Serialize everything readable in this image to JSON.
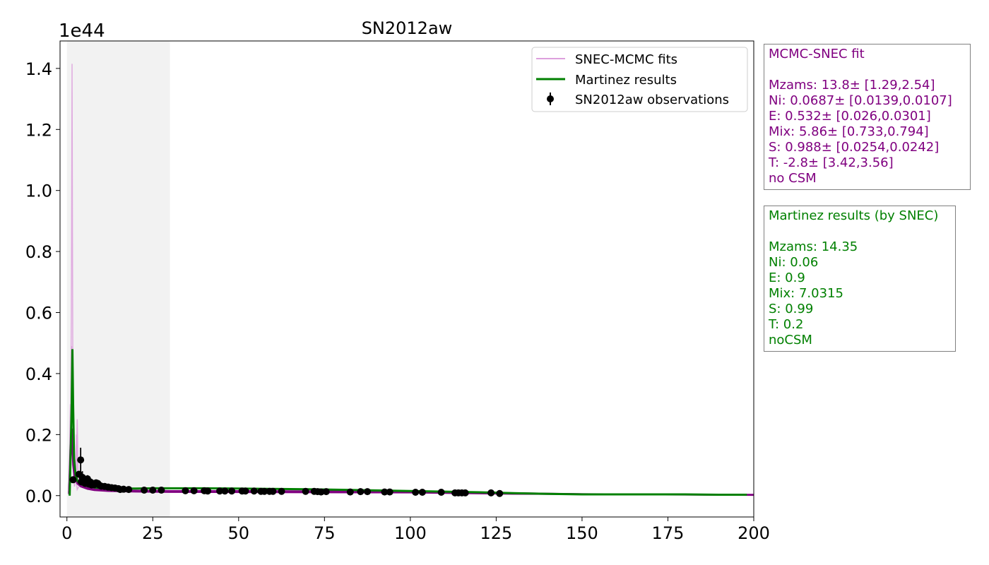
{
  "chart_data": {
    "type": "line",
    "title": "SN2012aw",
    "xlabel": "",
    "ylabel": "",
    "y_offset_label": "1e44",
    "xlim": [
      -2,
      200
    ],
    "ylim": [
      -0.07,
      1.49
    ],
    "x_ticks": [
      0,
      25,
      50,
      75,
      100,
      125,
      150,
      175,
      200
    ],
    "x_tick_labels": [
      "0",
      "25",
      "50",
      "75",
      "100",
      "125",
      "150",
      "175",
      "200"
    ],
    "y_ticks": [
      0.0,
      0.2,
      0.4,
      0.6,
      0.8,
      1.0,
      1.2,
      1.4
    ],
    "y_tick_labels": [
      "0.0",
      "0.2",
      "0.4",
      "0.6",
      "0.8",
      "1.0",
      "1.2",
      "1.4"
    ],
    "shaded_region": {
      "x": [
        0,
        30
      ],
      "color": "#f2f2f2"
    },
    "grid": false,
    "legend_position": "top-right",
    "legend": [
      {
        "label": "SNEC-MCMC fits",
        "style": "line",
        "color": "#dda0dd"
      },
      {
        "label": "Martinez results",
        "style": "line",
        "color": "#008000"
      },
      {
        "label": "SN2012aw observations",
        "style": "errorbar-marker",
        "color": "#000000"
      }
    ],
    "series": [
      {
        "name": "SNEC-MCMC fits",
        "color": "#dda0dd",
        "role": "fit-spikes",
        "lines": [
          {
            "x": [
              0.6,
              1.0,
              1.3,
              1.5,
              1.7,
              1.9,
              2.2,
              2.6,
              3.0,
              3.3,
              3.6,
              4.0
            ],
            "y": [
              0.005,
              0.12,
              0.6,
              1.415,
              0.5,
              0.15,
              0.08,
              0.05,
              0.25,
              0.06,
              0.04,
              0.03
            ]
          },
          {
            "x": [
              0.6,
              1.0,
              1.2,
              1.4,
              1.7,
              2.0,
              2.4,
              2.8,
              3.2,
              3.8
            ],
            "y": [
              0.005,
              0.3,
              0.1,
              0.49,
              0.2,
              0.08,
              0.04,
              0.2,
              0.05,
              0.035
            ]
          },
          {
            "x": [
              0.6,
              0.9,
              1.2,
              1.5,
              1.8,
              2.2,
              2.6,
              3.0,
              3.5
            ],
            "y": [
              0.005,
              0.2,
              0.26,
              0.15,
              0.1,
              0.03,
              0.06,
              0.02,
              0.03
            ]
          }
        ]
      },
      {
        "name": "SNEC-MCMC fits (purple)",
        "color": "#800080",
        "role": "fit-curves",
        "lines": [
          {
            "x": [
              0.6,
              1.0,
              1.4,
              1.8,
              2.2,
              2.7,
              3.2,
              4,
              6,
              8,
              10,
              15,
              20,
              30,
              50,
              80,
              100,
              130,
              150,
              200
            ],
            "y": [
              0.01,
              0.12,
              0.2,
              0.1,
              0.06,
              0.05,
              0.04,
              0.032,
              0.026,
              0.022,
              0.02,
              0.017,
              0.016,
              0.015,
              0.015,
              0.014,
              0.012,
              0.008,
              0.005,
              0.003
            ]
          },
          {
            "x": [
              0.6,
              1.0,
              1.5,
              2.0,
              2.5,
              3.0,
              4,
              6,
              8,
              12,
              20,
              30,
              60,
              100,
              130,
              200
            ],
            "y": [
              0.005,
              0.15,
              0.22,
              0.09,
              0.06,
              0.04,
              0.03,
              0.022,
              0.018,
              0.015,
              0.013,
              0.012,
              0.011,
              0.01,
              0.006,
              0.002
            ]
          }
        ]
      },
      {
        "name": "Martinez results",
        "color": "#008000",
        "role": "model",
        "x": [
          0.8,
          1.1,
          1.4,
          1.6,
          1.8,
          2.1,
          2.5,
          3.0,
          3.5,
          4,
          5,
          6,
          8,
          10,
          12,
          15,
          20,
          25,
          30,
          40,
          50,
          60,
          70,
          80,
          90,
          100,
          110,
          120,
          130,
          140,
          150,
          160,
          170,
          180,
          190,
          198
        ],
        "y": [
          0.0,
          0.15,
          0.3,
          0.48,
          0.3,
          0.12,
          0.07,
          0.05,
          0.042,
          0.038,
          0.034,
          0.031,
          0.027,
          0.025,
          0.024,
          0.023,
          0.023,
          0.024,
          0.024,
          0.024,
          0.023,
          0.022,
          0.021,
          0.019,
          0.017,
          0.015,
          0.013,
          0.011,
          0.008,
          0.006,
          0.004,
          0.004,
          0.004,
          0.004,
          0.003,
          0.003
        ]
      },
      {
        "name": "SN2012aw observations",
        "color": "#000000",
        "role": "observations",
        "points": [
          {
            "x": 1.8,
            "y": 0.052,
            "err": 0.006
          },
          {
            "x": 3.5,
            "y": 0.07,
            "err": 0.006
          },
          {
            "x": 4.0,
            "y": 0.117,
            "err": 0.04
          },
          {
            "x": 4.2,
            "y": 0.045,
            "err": 0.008
          },
          {
            "x": 4.5,
            "y": 0.06,
            "err": 0.02
          },
          {
            "x": 5.0,
            "y": 0.052,
            "err": 0.012
          },
          {
            "x": 5.3,
            "y": 0.04,
            "err": 0.006
          },
          {
            "x": 5.6,
            "y": 0.048,
            "err": 0.01
          },
          {
            "x": 6.0,
            "y": 0.055,
            "err": 0.012
          },
          {
            "x": 6.4,
            "y": 0.038,
            "err": 0.006
          },
          {
            "x": 6.8,
            "y": 0.045,
            "err": 0.008
          },
          {
            "x": 7.2,
            "y": 0.035,
            "err": 0.005
          },
          {
            "x": 7.6,
            "y": 0.04,
            "err": 0.006
          },
          {
            "x": 8.0,
            "y": 0.036,
            "err": 0.005
          },
          {
            "x": 8.5,
            "y": 0.042,
            "err": 0.006
          },
          {
            "x": 9.0,
            "y": 0.04,
            "err": 0.005
          },
          {
            "x": 9.5,
            "y": 0.034,
            "err": 0.004
          },
          {
            "x": 10.0,
            "y": 0.031,
            "err": 0.004
          },
          {
            "x": 11.0,
            "y": 0.03,
            "err": 0.003
          },
          {
            "x": 12.0,
            "y": 0.028,
            "err": 0.003
          },
          {
            "x": 13.0,
            "y": 0.026,
            "err": 0.003
          },
          {
            "x": 14.0,
            "y": 0.025,
            "err": 0.003
          },
          {
            "x": 15.0,
            "y": 0.023,
            "err": 0.002
          },
          {
            "x": 15.5,
            "y": 0.02,
            "err": 0.002
          },
          {
            "x": 16.5,
            "y": 0.021,
            "err": 0.002
          },
          {
            "x": 18.0,
            "y": 0.02,
            "err": 0.002
          },
          {
            "x": 22.5,
            "y": 0.018,
            "err": 0.002
          },
          {
            "x": 25.0,
            "y": 0.018,
            "err": 0.002
          },
          {
            "x": 27.5,
            "y": 0.018,
            "err": 0.002
          },
          {
            "x": 34.5,
            "y": 0.016,
            "err": 0.002
          },
          {
            "x": 37.0,
            "y": 0.016,
            "err": 0.002
          },
          {
            "x": 40.0,
            "y": 0.016,
            "err": 0.002
          },
          {
            "x": 41.0,
            "y": 0.015,
            "err": 0.002
          },
          {
            "x": 44.5,
            "y": 0.015,
            "err": 0.002
          },
          {
            "x": 46.0,
            "y": 0.015,
            "err": 0.002
          },
          {
            "x": 48.0,
            "y": 0.015,
            "err": 0.002
          },
          {
            "x": 51.0,
            "y": 0.015,
            "err": 0.002
          },
          {
            "x": 52.0,
            "y": 0.015,
            "err": 0.002
          },
          {
            "x": 54.5,
            "y": 0.015,
            "err": 0.002
          },
          {
            "x": 56.5,
            "y": 0.014,
            "err": 0.002
          },
          {
            "x": 57.5,
            "y": 0.014,
            "err": 0.002
          },
          {
            "x": 59.0,
            "y": 0.014,
            "err": 0.002
          },
          {
            "x": 60.0,
            "y": 0.014,
            "err": 0.002
          },
          {
            "x": 62.5,
            "y": 0.014,
            "err": 0.002
          },
          {
            "x": 69.5,
            "y": 0.014,
            "err": 0.002
          },
          {
            "x": 72.0,
            "y": 0.014,
            "err": 0.002
          },
          {
            "x": 73.0,
            "y": 0.013,
            "err": 0.002
          },
          {
            "x": 74.0,
            "y": 0.012,
            "err": 0.002
          },
          {
            "x": 75.5,
            "y": 0.013,
            "err": 0.002
          },
          {
            "x": 82.5,
            "y": 0.012,
            "err": 0.002
          },
          {
            "x": 85.5,
            "y": 0.013,
            "err": 0.002
          },
          {
            "x": 87.5,
            "y": 0.013,
            "err": 0.002
          },
          {
            "x": 92.5,
            "y": 0.012,
            "err": 0.002
          },
          {
            "x": 94.0,
            "y": 0.012,
            "err": 0.002
          },
          {
            "x": 101.5,
            "y": 0.011,
            "err": 0.002
          },
          {
            "x": 103.5,
            "y": 0.011,
            "err": 0.002
          },
          {
            "x": 109.0,
            "y": 0.011,
            "err": 0.002
          },
          {
            "x": 113.0,
            "y": 0.009,
            "err": 0.002
          },
          {
            "x": 114.0,
            "y": 0.009,
            "err": 0.002
          },
          {
            "x": 115.0,
            "y": 0.009,
            "err": 0.002
          },
          {
            "x": 116.0,
            "y": 0.009,
            "err": 0.002
          },
          {
            "x": 123.5,
            "y": 0.009,
            "err": 0.002
          },
          {
            "x": 126.0,
            "y": 0.007,
            "err": 0.002
          }
        ]
      }
    ]
  },
  "info_boxes": {
    "mcmc": {
      "color": "#800080",
      "title": "MCMC-SNEC fit",
      "lines": [
        "Mzams: 13.8± [1.29,2.54]",
        "Ni: 0.0687± [0.0139,0.0107]",
        "E: 0.532± [0.026,0.0301]",
        "Mix: 5.86± [0.733,0.794]",
        "S: 0.988± [0.0254,0.0242]",
        "T: -2.8± [3.42,3.56]",
        "no CSM"
      ]
    },
    "martinez": {
      "color": "#008000",
      "title": "Martinez results (by SNEC)",
      "lines": [
        "Mzams: 14.35",
        "Ni: 0.06",
        "E: 0.9",
        "Mix: 7.0315",
        "S: 0.99",
        "T: 0.2",
        "noCSM"
      ]
    }
  }
}
